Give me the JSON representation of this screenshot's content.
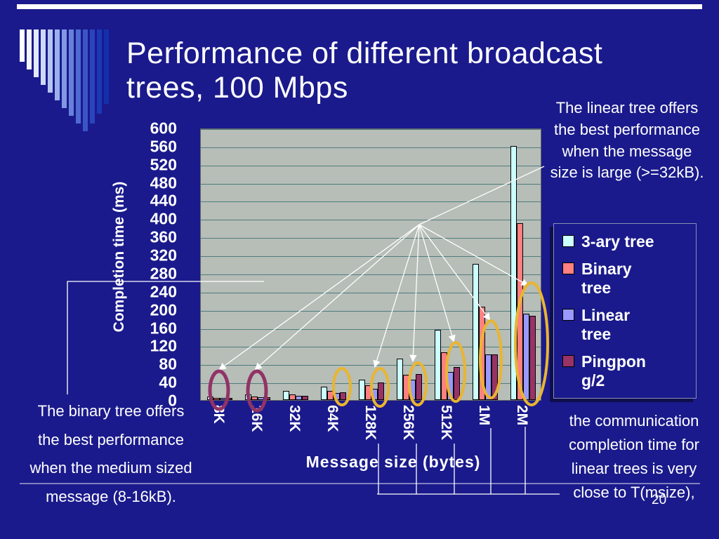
{
  "slide": {
    "title": "Performance of different broadcast\ntrees, 100 Mbps",
    "page_number": "20",
    "logo_icon": "vertical-bars-logo"
  },
  "annotations": {
    "top_right": "The linear tree offers\nthe best performance\nwhen the message\nsize is large (>=32kB).",
    "bottom_left": "The binary tree offers\nthe best performance\nwhen the medium sized\nmessage (8-16kB).",
    "bottom_right": "the communication\ncompletion time for\nlinear trees is very\nclose to T(msize),"
  },
  "chart_data": {
    "type": "bar",
    "title": "",
    "xlabel": "Message size (bytes)",
    "ylabel": "Completion time (ms)",
    "ylim": [
      0,
      600
    ],
    "ytick_step": 40,
    "grid": true,
    "legend_position": "right",
    "plot_bg": "#b7bdb7",
    "grid_color": "#4e7d7d",
    "categories": [
      "8K",
      "16K",
      "32K",
      "64K",
      "128K",
      "256K",
      "512K",
      "1M",
      "2M"
    ],
    "series": [
      {
        "name": "3-ary tree",
        "legend_label": "3-ary tree",
        "color": "#CCFFFF",
        "values": [
          8,
          12,
          20,
          30,
          45,
          92,
          155,
          300,
          560
        ]
      },
      {
        "name": "Binary tree",
        "legend_label": "Binary\ntree",
        "color": "#FF8080",
        "values": [
          5,
          8,
          13,
          20,
          32,
          55,
          105,
          205,
          390
        ]
      },
      {
        "name": "Linear tree",
        "legend_label": "Linear\ntree",
        "color": "#9999FF",
        "values": [
          4,
          6,
          10,
          15,
          25,
          45,
          62,
          100,
          190
        ]
      },
      {
        "name": "Pingpong/2",
        "legend_label": "Pingpon\ng/2",
        "color": "#993366",
        "values": [
          4,
          6,
          10,
          17,
          38,
          58,
          72,
          100,
          185
        ]
      }
    ],
    "highlights": {
      "maroon_circled_categories": [
        "8K",
        "16K"
      ],
      "yellow_circled_categories": [
        "64K",
        "128K",
        "256K",
        "512K",
        "1M",
        "2M"
      ]
    }
  },
  "colors": {
    "background": "#1a1a8c",
    "text": "#ffffff",
    "highlight_yellow": "#e9b531",
    "highlight_maroon": "#913366",
    "connector_white": "#ffffff"
  }
}
